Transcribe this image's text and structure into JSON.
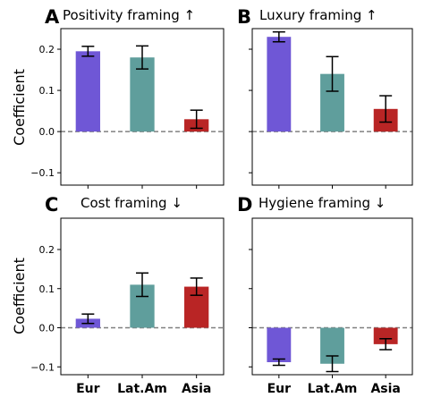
{
  "chart_data": [
    {
      "type": "bar",
      "panel_letter": "A",
      "title": "Positivity framing ↑",
      "ylabel": "Coefficient",
      "categories": [
        "Eur",
        "Lat.Am",
        "Asia"
      ],
      "values": [
        0.195,
        0.18,
        0.03
      ],
      "errors": [
        0.012,
        0.028,
        0.022
      ],
      "ylim": [
        -0.13,
        0.25
      ],
      "yticks": [
        -0.1,
        0.0,
        0.1,
        0.2
      ],
      "ytick_labels": [
        "−0.1",
        "0.0",
        "0.1",
        "0.2"
      ],
      "show_xticklabels": false,
      "show_yticklabels": true
    },
    {
      "type": "bar",
      "panel_letter": "B",
      "title": "Luxury framing ↑",
      "ylabel": "",
      "categories": [
        "Eur",
        "Lat.Am",
        "Asia"
      ],
      "values": [
        0.23,
        0.14,
        0.055
      ],
      "errors": [
        0.012,
        0.042,
        0.032
      ],
      "ylim": [
        -0.13,
        0.25
      ],
      "yticks": [
        -0.1,
        0.0,
        0.1,
        0.2
      ],
      "ytick_labels": [
        "−0.1",
        "0.0",
        "0.1",
        "0.2"
      ],
      "show_xticklabels": false,
      "show_yticklabels": false
    },
    {
      "type": "bar",
      "panel_letter": "C",
      "title": "Cost framing ↓",
      "ylabel": "Coefficient",
      "categories": [
        "Eur",
        "Lat.Am",
        "Asia"
      ],
      "values": [
        0.023,
        0.11,
        0.105
      ],
      "errors": [
        0.012,
        0.03,
        0.022
      ],
      "ylim": [
        -0.12,
        0.28
      ],
      "yticks": [
        -0.1,
        0.0,
        0.1,
        0.2
      ],
      "ytick_labels": [
        "−0.1",
        "0.0",
        "0.1",
        "0.2"
      ],
      "show_xticklabels": true,
      "show_yticklabels": true
    },
    {
      "type": "bar",
      "panel_letter": "D",
      "title": "Hygiene framing ↓",
      "ylabel": "",
      "categories": [
        "Eur",
        "Lat.Am",
        "Asia"
      ],
      "values": [
        -0.088,
        -0.092,
        -0.042
      ],
      "errors": [
        0.008,
        0.02,
        0.014
      ],
      "ylim": [
        -0.12,
        0.28
      ],
      "yticks": [
        -0.1,
        0.0,
        0.1,
        0.2
      ],
      "ytick_labels": [
        "−0.1",
        "0.0",
        "0.1",
        "0.2"
      ],
      "show_xticklabels": true,
      "show_yticklabels": false
    }
  ],
  "colors": {
    "Eur": "#6f57d6",
    "Lat.Am": "#5f9e9c",
    "Asia": "#b92525",
    "zero_line": "#808080",
    "axes": "#000000"
  }
}
